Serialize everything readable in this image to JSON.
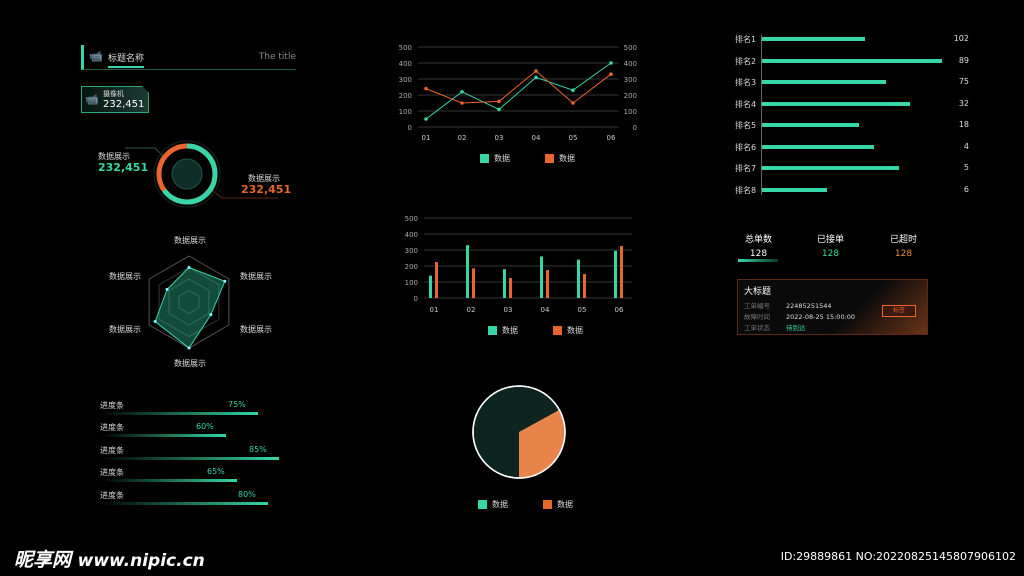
{
  "header": {
    "title": "标题名称",
    "subtitle": "The title"
  },
  "camera": {
    "label": "摄像机",
    "value": "232,451"
  },
  "donut": {
    "left_label": "数据展示",
    "left_value": "232,451",
    "right_label": "数据展示",
    "right_value": "232,451",
    "teal_fraction": 0.65
  },
  "radar": {
    "labels": [
      "数据展示",
      "数据展示",
      "数据展示",
      "数据展示",
      "数据展示",
      "数据展示"
    ],
    "values": [
      0.75,
      0.9,
      0.55,
      1.0,
      0.85,
      0.55
    ]
  },
  "progress": [
    {
      "label": "进度条",
      "value": "75%",
      "fraction": 0.75
    },
    {
      "label": "进度条",
      "value": "60%",
      "fraction": 0.6
    },
    {
      "label": "进度条",
      "value": "85%",
      "fraction": 0.85
    },
    {
      "label": "进度条",
      "value": "65%",
      "fraction": 0.65
    },
    {
      "label": "进度条",
      "value": "80%",
      "fraction": 0.8
    }
  ],
  "colors": {
    "teal": "#36d6a8",
    "orange": "#e8652c"
  },
  "chart_data": [
    {
      "type": "line",
      "categories": [
        "01",
        "02",
        "03",
        "04",
        "05",
        "06"
      ],
      "ylim": [
        0,
        500
      ],
      "yticks": [
        "0",
        "100",
        "200",
        "300",
        "400",
        "500"
      ],
      "grid": true,
      "legend": "bottom",
      "series": [
        {
          "name": "数据",
          "values": [
            50,
            220,
            110,
            310,
            230,
            400
          ]
        },
        {
          "name": "数据",
          "values": [
            240,
            150,
            160,
            350,
            150,
            330
          ]
        }
      ]
    },
    {
      "type": "bar",
      "categories": [
        "01",
        "02",
        "03",
        "04",
        "05",
        "06"
      ],
      "ylim": [
        0,
        500
      ],
      "yticks": [
        "0",
        "100",
        "200",
        "300",
        "400",
        "500"
      ],
      "grid": true,
      "legend": "bottom",
      "series": [
        {
          "name": "数据",
          "values": [
            140,
            330,
            180,
            260,
            240,
            295
          ]
        },
        {
          "name": "数据",
          "values": [
            225,
            185,
            125,
            175,
            150,
            325
          ]
        }
      ]
    },
    {
      "type": "pie",
      "legend": "bottom",
      "series": [
        {
          "name": "数据",
          "values": [
            67
          ]
        },
        {
          "name": "数据",
          "values": [
            33
          ]
        }
      ]
    }
  ],
  "ranking": [
    {
      "label": "排名1",
      "value": "102",
      "fill": 0.57
    },
    {
      "label": "排名2",
      "value": "89",
      "fill": 1.0
    },
    {
      "label": "排名3",
      "value": "75",
      "fill": 0.69
    },
    {
      "label": "排名4",
      "value": "32",
      "fill": 0.82
    },
    {
      "label": "排名5",
      "value": "18",
      "fill": 0.54
    },
    {
      "label": "排名6",
      "value": "4",
      "fill": 0.62
    },
    {
      "label": "排名7",
      "value": "5",
      "fill": 0.76
    },
    {
      "label": "排名8",
      "value": "6",
      "fill": 0.36
    }
  ],
  "stats": [
    {
      "label": "总单数",
      "value": "128"
    },
    {
      "label": "已接单",
      "value": "128"
    },
    {
      "label": "已超时",
      "value": "128"
    }
  ],
  "card": {
    "title": "大标题",
    "rows": [
      {
        "k": "工单编号",
        "v": "22485251544"
      },
      {
        "k": "故障时间",
        "v": "2022-08-25 15:00:00"
      },
      {
        "k": "工单状态",
        "v": "待到达"
      }
    ],
    "tag": "标签"
  },
  "watermark": {
    "logo": "昵享网 www.nipic.cn",
    "id": "ID:29889861 NO:20220825145807906102"
  }
}
